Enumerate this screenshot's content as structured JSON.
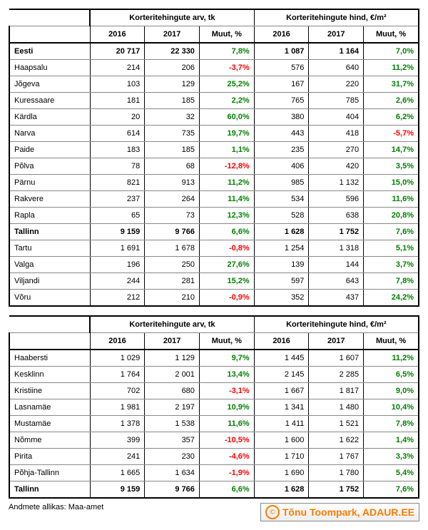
{
  "headers": {
    "group_count": "Korteritehingute arv, tk",
    "group_price": "Korteritehingute hind, €/m²",
    "y2016": "2016",
    "y2017": "2017",
    "change": "Muut, %"
  },
  "table1": [
    {
      "name": "Eesti",
      "c16": "20 717",
      "c17": "22 330",
      "cch": "7,8%",
      "p16": "1 087",
      "p17": "1 164",
      "pch": "7,0%",
      "bold": true
    },
    {
      "name": "Haapsalu",
      "c16": "214",
      "c17": "206",
      "cch": "-3,7%",
      "p16": "576",
      "p17": "640",
      "pch": "11,2%"
    },
    {
      "name": "Jõgeva",
      "c16": "103",
      "c17": "129",
      "cch": "25,2%",
      "p16": "167",
      "p17": "220",
      "pch": "31,7%"
    },
    {
      "name": "Kuressaare",
      "c16": "181",
      "c17": "185",
      "cch": "2,2%",
      "p16": "765",
      "p17": "785",
      "pch": "2,6%"
    },
    {
      "name": "Kärdla",
      "c16": "20",
      "c17": "32",
      "cch": "60,0%",
      "p16": "380",
      "p17": "404",
      "pch": "6,2%"
    },
    {
      "name": "Narva",
      "c16": "614",
      "c17": "735",
      "cch": "19,7%",
      "p16": "443",
      "p17": "418",
      "pch": "-5,7%"
    },
    {
      "name": "Paide",
      "c16": "183",
      "c17": "185",
      "cch": "1,1%",
      "p16": "235",
      "p17": "270",
      "pch": "14,7%"
    },
    {
      "name": "Põlva",
      "c16": "78",
      "c17": "68",
      "cch": "-12,8%",
      "p16": "406",
      "p17": "420",
      "pch": "3,5%"
    },
    {
      "name": "Pärnu",
      "c16": "821",
      "c17": "913",
      "cch": "11,2%",
      "p16": "985",
      "p17": "1 132",
      "pch": "15,0%"
    },
    {
      "name": "Rakvere",
      "c16": "237",
      "c17": "264",
      "cch": "11,4%",
      "p16": "534",
      "p17": "596",
      "pch": "11,6%"
    },
    {
      "name": "Rapla",
      "c16": "65",
      "c17": "73",
      "cch": "12,3%",
      "p16": "528",
      "p17": "638",
      "pch": "20,8%"
    },
    {
      "name": "Tallinn",
      "c16": "9 159",
      "c17": "9 766",
      "cch": "6,6%",
      "p16": "1 628",
      "p17": "1 752",
      "pch": "7,6%",
      "bold": true
    },
    {
      "name": "Tartu",
      "c16": "1 691",
      "c17": "1 678",
      "cch": "-0,8%",
      "p16": "1 254",
      "p17": "1 318",
      "pch": "5,1%"
    },
    {
      "name": "Valga",
      "c16": "196",
      "c17": "250",
      "cch": "27,6%",
      "p16": "139",
      "p17": "144",
      "pch": "3,7%"
    },
    {
      "name": "Viljandi",
      "c16": "244",
      "c17": "281",
      "cch": "15,2%",
      "p16": "597",
      "p17": "643",
      "pch": "7,8%"
    },
    {
      "name": "Võru",
      "c16": "212",
      "c17": "210",
      "cch": "-0,9%",
      "p16": "352",
      "p17": "437",
      "pch": "24,2%"
    }
  ],
  "table2": [
    {
      "name": "Haabersti",
      "c16": "1 029",
      "c17": "1 129",
      "cch": "9,7%",
      "p16": "1 445",
      "p17": "1 607",
      "pch": "11,2%"
    },
    {
      "name": "Kesklinn",
      "c16": "1 764",
      "c17": "2 001",
      "cch": "13,4%",
      "p16": "2 145",
      "p17": "2 285",
      "pch": "6,5%"
    },
    {
      "name": "Kristiine",
      "c16": "702",
      "c17": "680",
      "cch": "-3,1%",
      "p16": "1 667",
      "p17": "1 817",
      "pch": "9,0%"
    },
    {
      "name": "Lasnamäe",
      "c16": "1 981",
      "c17": "2 197",
      "cch": "10,9%",
      "p16": "1 341",
      "p17": "1 480",
      "pch": "10,4%"
    },
    {
      "name": "Mustamäe",
      "c16": "1 378",
      "c17": "1 538",
      "cch": "11,6%",
      "p16": "1 411",
      "p17": "1 521",
      "pch": "7,8%"
    },
    {
      "name": "Nõmme",
      "c16": "399",
      "c17": "357",
      "cch": "-10,5%",
      "p16": "1 600",
      "p17": "1 622",
      "pch": "1,4%"
    },
    {
      "name": "Pirita",
      "c16": "241",
      "c17": "230",
      "cch": "-4,6%",
      "p16": "1 710",
      "p17": "1 767",
      "pch": "3,3%"
    },
    {
      "name": "Põhja-Tallinn",
      "c16": "1 665",
      "c17": "1 634",
      "cch": "-1,9%",
      "p16": "1 690",
      "p17": "1 780",
      "pch": "5,4%"
    },
    {
      "name": "Tallinn",
      "c16": "9 159",
      "c17": "9 766",
      "cch": "6,6%",
      "p16": "1 628",
      "p17": "1 752",
      "pch": "7,6%",
      "bold": true
    }
  ],
  "source_label": "Andmete allikas: Maa-amet",
  "badge_text": "Tõnu Toompark, ADAUR.EE",
  "colors": {
    "pos": "#008000",
    "neg": "#ff0000",
    "accent": "#ff7a00"
  }
}
